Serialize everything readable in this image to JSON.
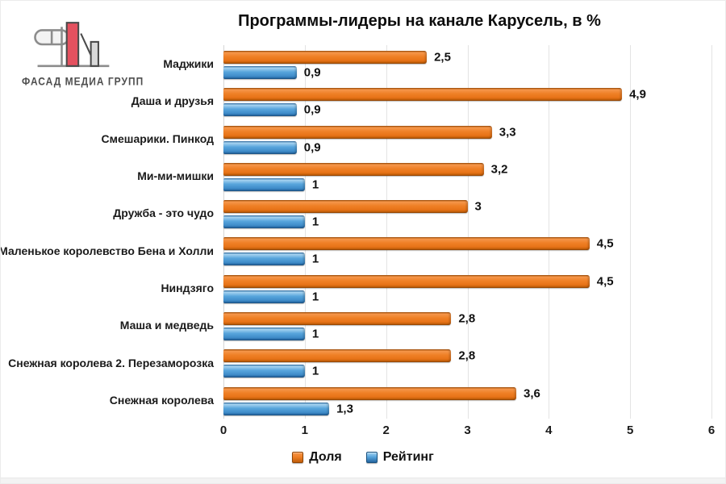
{
  "logo": {
    "company": "ФАСАД МЕДИА ГРУПП"
  },
  "title": "Программы-лидеры на канале Карусель, в %",
  "chart_data": {
    "type": "bar",
    "orientation": "horizontal",
    "title": "Программы-лидеры на канале Карусель, в %",
    "categories": [
      "Маджики",
      "Даша и друзья",
      "Смешарики. Пинкод",
      "Ми-ми-мишки",
      "Дружба - это чудо",
      "Маленькое королевство Бена и Холли",
      "Ниндзяго",
      "Маша и медведь",
      "Снежная королева 2. Перезаморозка",
      "Снежная королева"
    ],
    "series": [
      {
        "name": "Доля",
        "color": "#E8741B",
        "values": [
          2.5,
          4.9,
          3.3,
          3.2,
          3,
          4.5,
          4.5,
          2.8,
          2.8,
          3.6
        ],
        "labels": [
          "2,5",
          "4,9",
          "3,3",
          "3,2",
          "3",
          "4,5",
          "4,5",
          "2,8",
          "2,8",
          "3,6"
        ]
      },
      {
        "name": "Рейтинг",
        "color": "#4795D1",
        "values": [
          0.9,
          0.9,
          0.9,
          1,
          1,
          1,
          1,
          1,
          1,
          1.3
        ],
        "labels": [
          "0,9",
          "0,9",
          "0,9",
          "1",
          "1",
          "1",
          "1",
          "1",
          "1",
          "1,3"
        ]
      }
    ],
    "xlim": [
      0,
      6
    ],
    "x_ticks": [
      "0",
      "1",
      "2",
      "3",
      "4",
      "5",
      "6"
    ],
    "grid": true,
    "legend_position": "bottom"
  }
}
